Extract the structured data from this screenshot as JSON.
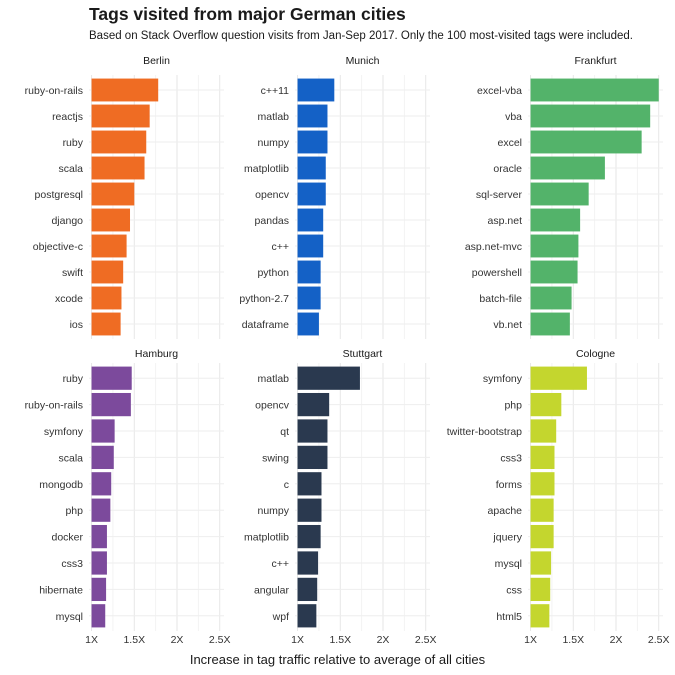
{
  "title": "Tags visited from major German cities",
  "subtitle": "Based on Stack Overflow question visits from Jan-Sep 2017. Only the 100 most-visited tags were included.",
  "chart_data": {
    "type": "bar",
    "orientation": "horizontal",
    "facet_grid": "2 rows x 3 columns",
    "xlabel": "Increase in tag traffic relative to average of all cities",
    "xlim": [
      0.97,
      2.55
    ],
    "xticks": [
      1,
      1.5,
      2,
      2.5
    ],
    "xtick_labels": [
      "1X",
      "1.5X",
      "2X",
      "2.5X"
    ],
    "grid": true,
    "panels": [
      {
        "city": "Berlin",
        "color": "#ef6c23",
        "categories": [
          "ruby-on-rails",
          "reactjs",
          "ruby",
          "scala",
          "postgresql",
          "django",
          "objective-c",
          "swift",
          "xcode",
          "ios"
        ],
        "values": [
          1.78,
          1.68,
          1.64,
          1.62,
          1.5,
          1.45,
          1.41,
          1.37,
          1.35,
          1.34
        ]
      },
      {
        "city": "Munich",
        "color": "#1461c6",
        "categories": [
          "c++11",
          "matlab",
          "numpy",
          "matplotlib",
          "opencv",
          "pandas",
          "c++",
          "python",
          "python-2.7",
          "dataframe"
        ],
        "values": [
          1.43,
          1.35,
          1.35,
          1.33,
          1.33,
          1.3,
          1.3,
          1.27,
          1.27,
          1.25
        ]
      },
      {
        "city": "Frankfurt",
        "color": "#53b36a",
        "categories": [
          "excel-vba",
          "vba",
          "excel",
          "oracle",
          "sql-server",
          "asp.net",
          "asp.net-mvc",
          "powershell",
          "batch-file",
          "vb.net"
        ],
        "values": [
          2.5,
          2.4,
          2.3,
          1.87,
          1.68,
          1.58,
          1.56,
          1.55,
          1.48,
          1.46
        ]
      },
      {
        "city": "Hamburg",
        "color": "#7c4a9c",
        "categories": [
          "ruby",
          "ruby-on-rails",
          "symfony",
          "scala",
          "mongodb",
          "php",
          "docker",
          "css3",
          "hibernate",
          "mysql"
        ],
        "values": [
          1.47,
          1.46,
          1.27,
          1.26,
          1.23,
          1.22,
          1.18,
          1.18,
          1.17,
          1.16
        ]
      },
      {
        "city": "Stuttgart",
        "color": "#2a394f",
        "categories": [
          "matlab",
          "opencv",
          "qt",
          "swing",
          "c",
          "numpy",
          "matplotlib",
          "c++",
          "angular",
          "wpf"
        ],
        "values": [
          1.73,
          1.37,
          1.35,
          1.35,
          1.28,
          1.28,
          1.27,
          1.24,
          1.23,
          1.22
        ]
      },
      {
        "city": "Cologne",
        "color": "#c4d62e",
        "categories": [
          "symfony",
          "php",
          "twitter-bootstrap",
          "css3",
          "forms",
          "apache",
          "jquery",
          "mysql",
          "css",
          "html5"
        ],
        "values": [
          1.66,
          1.36,
          1.3,
          1.28,
          1.28,
          1.27,
          1.27,
          1.24,
          1.23,
          1.22
        ]
      }
    ]
  }
}
